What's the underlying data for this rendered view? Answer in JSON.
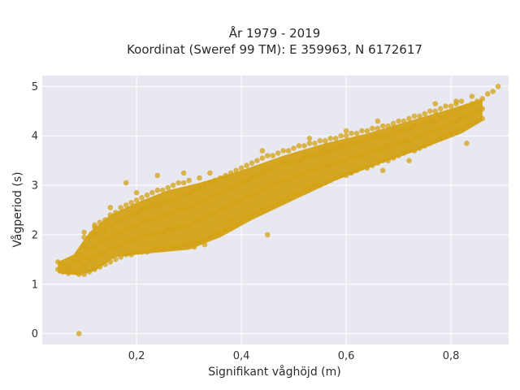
{
  "chart_data": {
    "type": "scatter",
    "title_line1": "År 1979 - 2019",
    "title_line2": "Koordinat (Sweref 99 TM): E 359963, N 6172617",
    "xlabel": "Signifikant våghöjd (m)",
    "ylabel": "Vågperiod (s)",
    "xlim": [
      0.02,
      0.91
    ],
    "ylim": [
      -0.22,
      5.22
    ],
    "x_ticks": [
      {
        "value": 0.2,
        "label": "0,2"
      },
      {
        "value": 0.4,
        "label": "0,4"
      },
      {
        "value": 0.6,
        "label": "0,6"
      },
      {
        "value": 0.8,
        "label": "0,8"
      }
    ],
    "y_ticks": [
      {
        "value": 0,
        "label": "0"
      },
      {
        "value": 1,
        "label": "1"
      },
      {
        "value": 2,
        "label": "2"
      },
      {
        "value": 3,
        "label": "3"
      },
      {
        "value": 4,
        "label": "4"
      },
      {
        "value": 5,
        "label": "5"
      }
    ],
    "grid": true,
    "marker_color": "#d4a216",
    "plot_bg": "#e8e8f0",
    "points": [
      [
        0.09,
        0.0
      ],
      [
        0.05,
        1.3
      ],
      [
        0.05,
        1.45
      ],
      [
        0.06,
        1.25
      ],
      [
        0.06,
        1.4
      ],
      [
        0.07,
        1.22
      ],
      [
        0.07,
        1.35
      ],
      [
        0.08,
        1.25
      ],
      [
        0.08,
        1.5
      ],
      [
        0.09,
        1.2
      ],
      [
        0.09,
        1.45
      ],
      [
        0.09,
        1.6
      ],
      [
        0.1,
        1.2
      ],
      [
        0.1,
        1.35
      ],
      [
        0.1,
        1.55
      ],
      [
        0.1,
        1.75
      ],
      [
        0.1,
        1.95
      ],
      [
        0.11,
        1.25
      ],
      [
        0.11,
        1.5
      ],
      [
        0.11,
        1.7
      ],
      [
        0.11,
        1.9
      ],
      [
        0.12,
        1.3
      ],
      [
        0.12,
        1.55
      ],
      [
        0.12,
        1.75
      ],
      [
        0.12,
        2.0
      ],
      [
        0.12,
        2.15
      ],
      [
        0.13,
        1.35
      ],
      [
        0.13,
        1.6
      ],
      [
        0.13,
        1.85
      ],
      [
        0.13,
        2.05
      ],
      [
        0.13,
        2.25
      ],
      [
        0.14,
        1.4
      ],
      [
        0.14,
        1.65
      ],
      [
        0.14,
        1.9
      ],
      [
        0.14,
        2.1
      ],
      [
        0.14,
        2.3
      ],
      [
        0.15,
        1.45
      ],
      [
        0.15,
        1.7
      ],
      [
        0.15,
        1.95
      ],
      [
        0.15,
        2.2
      ],
      [
        0.15,
        2.4
      ],
      [
        0.16,
        1.5
      ],
      [
        0.16,
        1.75
      ],
      [
        0.16,
        2.0
      ],
      [
        0.16,
        2.25
      ],
      [
        0.16,
        2.45
      ],
      [
        0.17,
        1.55
      ],
      [
        0.17,
        1.8
      ],
      [
        0.17,
        2.05
      ],
      [
        0.17,
        2.3
      ],
      [
        0.17,
        2.55
      ],
      [
        0.18,
        1.6
      ],
      [
        0.18,
        1.85
      ],
      [
        0.18,
        2.1
      ],
      [
        0.18,
        2.35
      ],
      [
        0.18,
        2.6
      ],
      [
        0.19,
        1.6
      ],
      [
        0.19,
        1.9
      ],
      [
        0.19,
        2.15
      ],
      [
        0.19,
        2.4
      ],
      [
        0.19,
        2.65
      ],
      [
        0.2,
        1.65
      ],
      [
        0.2,
        1.9
      ],
      [
        0.2,
        2.2
      ],
      [
        0.2,
        2.45
      ],
      [
        0.2,
        2.7
      ],
      [
        0.21,
        1.65
      ],
      [
        0.21,
        1.95
      ],
      [
        0.21,
        2.25
      ],
      [
        0.21,
        2.5
      ],
      [
        0.21,
        2.75
      ],
      [
        0.22,
        1.65
      ],
      [
        0.22,
        2.0
      ],
      [
        0.22,
        2.3
      ],
      [
        0.22,
        2.55
      ],
      [
        0.22,
        2.8
      ],
      [
        0.23,
        1.7
      ],
      [
        0.23,
        2.0
      ],
      [
        0.23,
        2.3
      ],
      [
        0.23,
        2.6
      ],
      [
        0.23,
        2.85
      ],
      [
        0.24,
        1.7
      ],
      [
        0.24,
        2.05
      ],
      [
        0.24,
        2.35
      ],
      [
        0.24,
        2.6
      ],
      [
        0.24,
        2.9
      ],
      [
        0.25,
        1.7
      ],
      [
        0.25,
        2.05
      ],
      [
        0.25,
        2.4
      ],
      [
        0.25,
        2.65
      ],
      [
        0.25,
        2.9
      ],
      [
        0.26,
        1.75
      ],
      [
        0.26,
        2.1
      ],
      [
        0.26,
        2.4
      ],
      [
        0.26,
        2.7
      ],
      [
        0.26,
        2.95
      ],
      [
        0.27,
        1.75
      ],
      [
        0.27,
        2.1
      ],
      [
        0.27,
        2.45
      ],
      [
        0.27,
        2.7
      ],
      [
        0.27,
        3.0
      ],
      [
        0.28,
        1.75
      ],
      [
        0.28,
        2.15
      ],
      [
        0.28,
        2.5
      ],
      [
        0.28,
        2.75
      ],
      [
        0.28,
        3.05
      ],
      [
        0.29,
        1.8
      ],
      [
        0.29,
        2.15
      ],
      [
        0.29,
        2.5
      ],
      [
        0.29,
        2.8
      ],
      [
        0.29,
        3.05
      ],
      [
        0.3,
        1.8
      ],
      [
        0.3,
        2.2
      ],
      [
        0.3,
        2.55
      ],
      [
        0.3,
        2.85
      ],
      [
        0.3,
        3.1
      ],
      [
        0.31,
        1.85
      ],
      [
        0.31,
        2.25
      ],
      [
        0.31,
        2.6
      ],
      [
        0.31,
        2.9
      ],
      [
        0.32,
        1.85
      ],
      [
        0.32,
        2.3
      ],
      [
        0.32,
        2.65
      ],
      [
        0.32,
        2.95
      ],
      [
        0.32,
        3.15
      ],
      [
        0.33,
        1.9
      ],
      [
        0.33,
        2.35
      ],
      [
        0.33,
        2.7
      ],
      [
        0.33,
        3.0
      ],
      [
        0.34,
        1.95
      ],
      [
        0.34,
        2.4
      ],
      [
        0.34,
        2.75
      ],
      [
        0.34,
        3.05
      ],
      [
        0.34,
        3.25
      ],
      [
        0.35,
        2.0
      ],
      [
        0.35,
        2.45
      ],
      [
        0.35,
        2.8
      ],
      [
        0.35,
        3.1
      ],
      [
        0.36,
        2.05
      ],
      [
        0.36,
        2.5
      ],
      [
        0.36,
        2.85
      ],
      [
        0.36,
        3.15
      ],
      [
        0.37,
        2.1
      ],
      [
        0.37,
        2.55
      ],
      [
        0.37,
        2.9
      ],
      [
        0.37,
        3.2
      ],
      [
        0.38,
        2.15
      ],
      [
        0.38,
        2.6
      ],
      [
        0.38,
        2.95
      ],
      [
        0.38,
        3.25
      ],
      [
        0.39,
        2.2
      ],
      [
        0.39,
        2.65
      ],
      [
        0.39,
        3.0
      ],
      [
        0.39,
        3.3
      ],
      [
        0.4,
        2.3
      ],
      [
        0.4,
        2.7
      ],
      [
        0.4,
        3.05
      ],
      [
        0.4,
        3.35
      ],
      [
        0.41,
        2.35
      ],
      [
        0.41,
        2.75
      ],
      [
        0.41,
        3.1
      ],
      [
        0.41,
        3.4
      ],
      [
        0.42,
        2.4
      ],
      [
        0.42,
        2.8
      ],
      [
        0.42,
        3.15
      ],
      [
        0.42,
        3.45
      ],
      [
        0.43,
        2.45
      ],
      [
        0.43,
        2.85
      ],
      [
        0.43,
        3.2
      ],
      [
        0.43,
        3.5
      ],
      [
        0.44,
        2.5
      ],
      [
        0.44,
        2.9
      ],
      [
        0.44,
        3.25
      ],
      [
        0.44,
        3.55
      ],
      [
        0.45,
        2.55
      ],
      [
        0.45,
        2.95
      ],
      [
        0.45,
        3.3
      ],
      [
        0.45,
        3.6
      ],
      [
        0.46,
        2.6
      ],
      [
        0.46,
        3.0
      ],
      [
        0.46,
        3.35
      ],
      [
        0.46,
        3.6
      ],
      [
        0.47,
        2.65
      ],
      [
        0.47,
        3.05
      ],
      [
        0.47,
        3.4
      ],
      [
        0.47,
        3.65
      ],
      [
        0.48,
        2.7
      ],
      [
        0.48,
        3.1
      ],
      [
        0.48,
        3.45
      ],
      [
        0.48,
        3.7
      ],
      [
        0.49,
        2.75
      ],
      [
        0.49,
        3.1
      ],
      [
        0.49,
        3.45
      ],
      [
        0.49,
        3.7
      ],
      [
        0.5,
        2.8
      ],
      [
        0.5,
        3.15
      ],
      [
        0.5,
        3.5
      ],
      [
        0.5,
        3.75
      ],
      [
        0.51,
        2.85
      ],
      [
        0.51,
        3.2
      ],
      [
        0.51,
        3.5
      ],
      [
        0.51,
        3.8
      ],
      [
        0.52,
        2.9
      ],
      [
        0.52,
        3.25
      ],
      [
        0.52,
        3.55
      ],
      [
        0.52,
        3.8
      ],
      [
        0.53,
        2.95
      ],
      [
        0.53,
        3.3
      ],
      [
        0.53,
        3.6
      ],
      [
        0.53,
        3.85
      ],
      [
        0.54,
        3.0
      ],
      [
        0.54,
        3.3
      ],
      [
        0.54,
        3.6
      ],
      [
        0.54,
        3.85
      ],
      [
        0.55,
        3.0
      ],
      [
        0.55,
        3.35
      ],
      [
        0.55,
        3.65
      ],
      [
        0.55,
        3.9
      ],
      [
        0.56,
        3.05
      ],
      [
        0.56,
        3.4
      ],
      [
        0.56,
        3.7
      ],
      [
        0.56,
        3.9
      ],
      [
        0.57,
        3.1
      ],
      [
        0.57,
        3.4
      ],
      [
        0.57,
        3.7
      ],
      [
        0.57,
        3.95
      ],
      [
        0.58,
        3.15
      ],
      [
        0.58,
        3.45
      ],
      [
        0.58,
        3.75
      ],
      [
        0.58,
        3.95
      ],
      [
        0.59,
        3.2
      ],
      [
        0.59,
        3.5
      ],
      [
        0.59,
        3.8
      ],
      [
        0.59,
        4.0
      ],
      [
        0.6,
        3.2
      ],
      [
        0.6,
        3.5
      ],
      [
        0.6,
        3.8
      ],
      [
        0.6,
        4.0
      ],
      [
        0.61,
        3.25
      ],
      [
        0.61,
        3.55
      ],
      [
        0.61,
        3.85
      ],
      [
        0.61,
        4.05
      ],
      [
        0.62,
        3.3
      ],
      [
        0.62,
        3.6
      ],
      [
        0.62,
        3.85
      ],
      [
        0.62,
        4.05
      ],
      [
        0.63,
        3.35
      ],
      [
        0.63,
        3.6
      ],
      [
        0.63,
        3.9
      ],
      [
        0.63,
        4.1
      ],
      [
        0.64,
        3.35
      ],
      [
        0.64,
        3.65
      ],
      [
        0.64,
        3.9
      ],
      [
        0.64,
        4.1
      ],
      [
        0.65,
        3.4
      ],
      [
        0.65,
        3.7
      ],
      [
        0.65,
        3.95
      ],
      [
        0.65,
        4.15
      ],
      [
        0.66,
        3.45
      ],
      [
        0.66,
        3.7
      ],
      [
        0.66,
        3.95
      ],
      [
        0.66,
        4.15
      ],
      [
        0.67,
        3.5
      ],
      [
        0.67,
        3.75
      ],
      [
        0.67,
        4.0
      ],
      [
        0.67,
        4.2
      ],
      [
        0.68,
        3.5
      ],
      [
        0.68,
        3.8
      ],
      [
        0.68,
        4.0
      ],
      [
        0.68,
        4.2
      ],
      [
        0.69,
        3.55
      ],
      [
        0.69,
        3.8
      ],
      [
        0.69,
        4.05
      ],
      [
        0.69,
        4.25
      ],
      [
        0.7,
        3.6
      ],
      [
        0.7,
        3.85
      ],
      [
        0.7,
        4.1
      ],
      [
        0.7,
        4.3
      ],
      [
        0.71,
        3.65
      ],
      [
        0.71,
        3.9
      ],
      [
        0.71,
        4.1
      ],
      [
        0.71,
        4.3
      ],
      [
        0.72,
        3.7
      ],
      [
        0.72,
        3.9
      ],
      [
        0.72,
        4.15
      ],
      [
        0.72,
        4.35
      ],
      [
        0.73,
        3.7
      ],
      [
        0.73,
        3.95
      ],
      [
        0.73,
        4.2
      ],
      [
        0.73,
        4.4
      ],
      [
        0.74,
        3.75
      ],
      [
        0.74,
        4.0
      ],
      [
        0.74,
        4.2
      ],
      [
        0.74,
        4.4
      ],
      [
        0.75,
        3.8
      ],
      [
        0.75,
        4.05
      ],
      [
        0.75,
        4.25
      ],
      [
        0.75,
        4.45
      ],
      [
        0.76,
        3.85
      ],
      [
        0.76,
        4.1
      ],
      [
        0.76,
        4.3
      ],
      [
        0.76,
        4.5
      ],
      [
        0.77,
        3.9
      ],
      [
        0.77,
        4.1
      ],
      [
        0.77,
        4.3
      ],
      [
        0.77,
        4.5
      ],
      [
        0.78,
        3.95
      ],
      [
        0.78,
        4.15
      ],
      [
        0.78,
        4.35
      ],
      [
        0.78,
        4.55
      ],
      [
        0.79,
        4.0
      ],
      [
        0.79,
        4.2
      ],
      [
        0.79,
        4.4
      ],
      [
        0.79,
        4.6
      ],
      [
        0.8,
        4.05
      ],
      [
        0.8,
        4.25
      ],
      [
        0.8,
        4.45
      ],
      [
        0.8,
        4.6
      ],
      [
        0.81,
        4.1
      ],
      [
        0.81,
        4.3
      ],
      [
        0.81,
        4.5
      ],
      [
        0.81,
        4.65
      ],
      [
        0.82,
        4.15
      ],
      [
        0.82,
        4.35
      ],
      [
        0.82,
        4.55
      ],
      [
        0.82,
        4.7
      ],
      [
        0.83,
        3.85
      ],
      [
        0.83,
        4.2
      ],
      [
        0.83,
        4.4
      ],
      [
        0.83,
        4.6
      ],
      [
        0.84,
        4.25
      ],
      [
        0.84,
        4.45
      ],
      [
        0.84,
        4.65
      ],
      [
        0.84,
        4.8
      ],
      [
        0.85,
        4.3
      ],
      [
        0.85,
        4.5
      ],
      [
        0.85,
        4.7
      ],
      [
        0.86,
        4.35
      ],
      [
        0.86,
        4.55
      ],
      [
        0.86,
        4.75
      ],
      [
        0.87,
        4.85
      ],
      [
        0.88,
        4.9
      ],
      [
        0.89,
        5.0
      ],
      [
        0.33,
        1.8
      ],
      [
        0.31,
        1.75
      ],
      [
        0.45,
        2.0
      ],
      [
        0.2,
        2.85
      ],
      [
        0.15,
        2.55
      ],
      [
        0.12,
        2.2
      ],
      [
        0.1,
        2.05
      ],
      [
        0.18,
        3.05
      ],
      [
        0.24,
        3.2
      ],
      [
        0.29,
        3.25
      ],
      [
        0.44,
        3.7
      ],
      [
        0.53,
        3.95
      ],
      [
        0.56,
        3.65
      ],
      [
        0.67,
        3.3
      ],
      [
        0.72,
        3.5
      ],
      [
        0.6,
        4.1
      ],
      [
        0.66,
        4.3
      ],
      [
        0.77,
        4.65
      ],
      [
        0.81,
        4.7
      ],
      [
        0.38,
        2.3
      ]
    ]
  }
}
